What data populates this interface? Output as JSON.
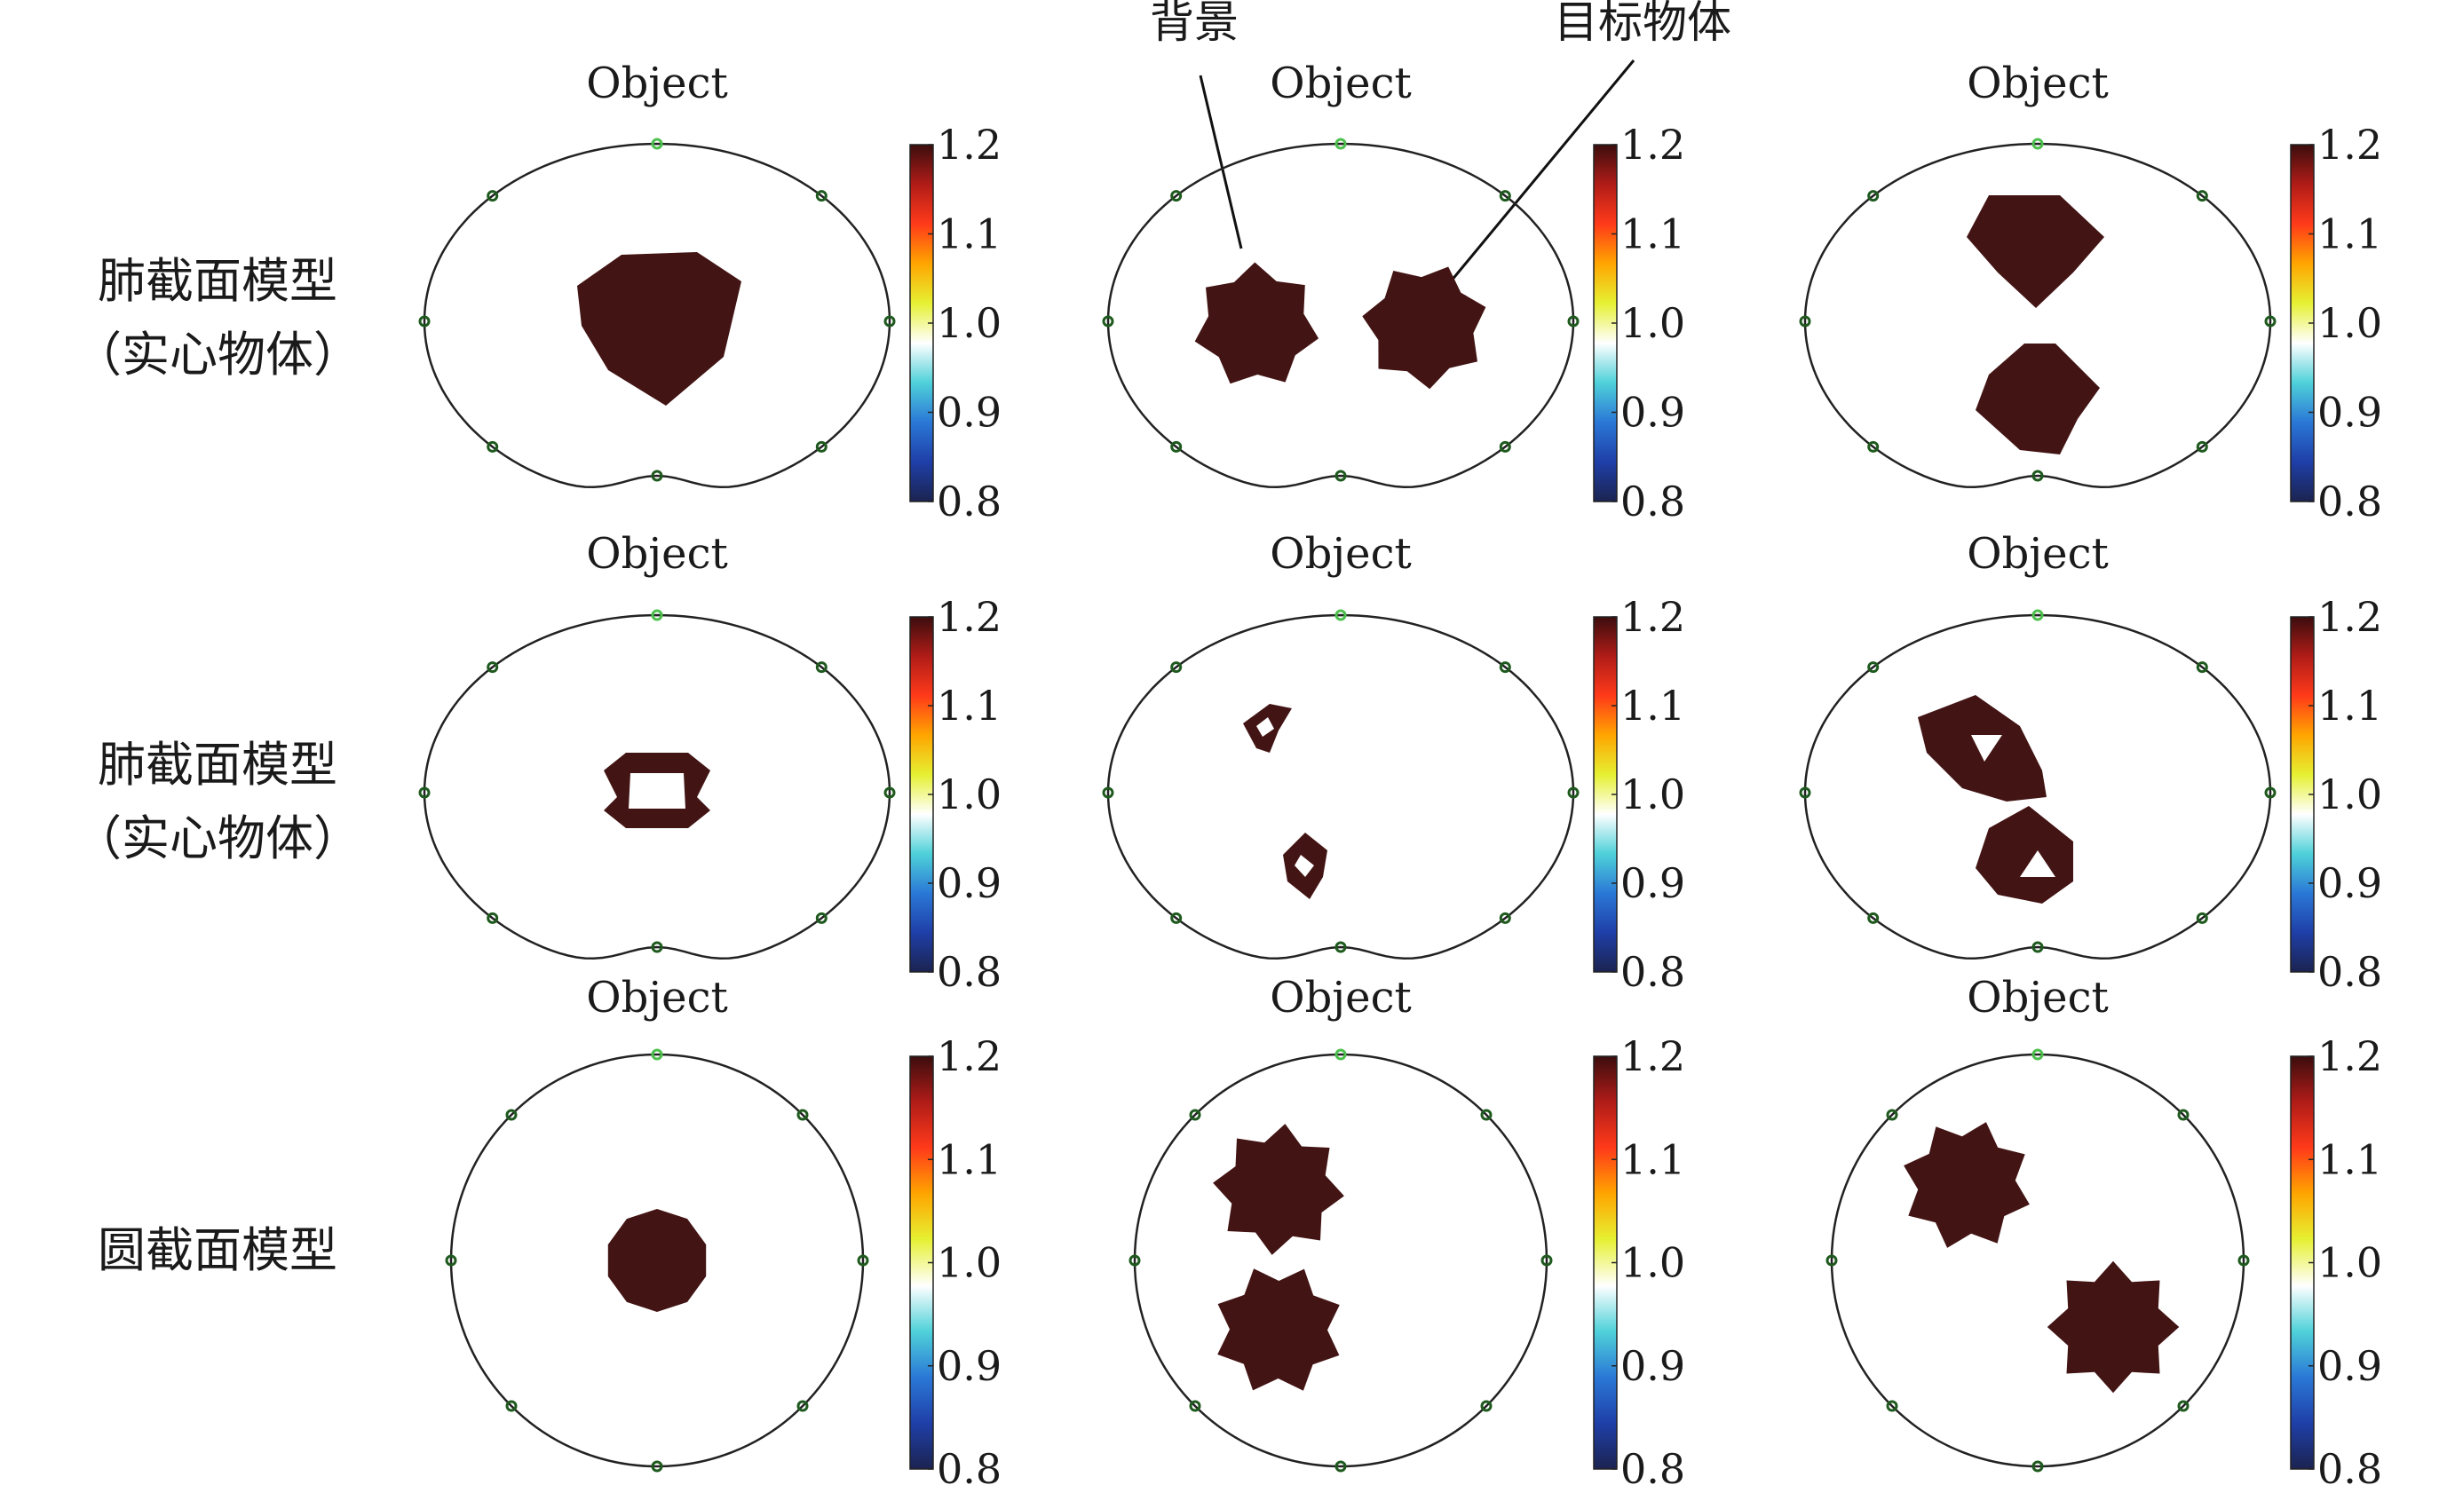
{
  "panel_title": "Object",
  "row_labels": [
    [
      "肺截面模型",
      "（实心物体）"
    ],
    [
      "肺截面模型",
      "（实心物体）"
    ],
    [
      "圆截面模型"
    ]
  ],
  "annotations": {
    "background": "背景",
    "target": "目标物体"
  },
  "colorbar": {
    "ticks": [
      "1.2",
      "1.1",
      "1.0",
      "0.9",
      "0.8"
    ],
    "range": [
      0.8,
      1.2
    ],
    "stops": [
      "#3b0d0d",
      "#b01c18",
      "#ff3a1a",
      "#ffa500",
      "#e6f032",
      "#ffffff",
      "#4fd1d9",
      "#2a78d6",
      "#1f3fa8",
      "#1b2350"
    ]
  },
  "colors": {
    "object": "#431414",
    "boundary": "#222222",
    "electrode": "#1e5a1e",
    "electrode_active": "#4cbf4c"
  }
}
